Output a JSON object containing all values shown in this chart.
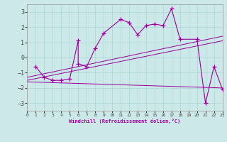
{
  "xlabel": "Windchill (Refroidissement éolien,°C)",
  "bg_color": "#cce8e8",
  "line_color": "#990099",
  "grid_color": "#aad4d4",
  "xlim": [
    0,
    23
  ],
  "ylim": [
    -3.5,
    3.5
  ],
  "xticks": [
    0,
    1,
    2,
    3,
    4,
    5,
    6,
    7,
    8,
    9,
    10,
    11,
    12,
    13,
    14,
    15,
    16,
    17,
    18,
    19,
    20,
    21,
    22,
    23
  ],
  "yticks": [
    -3,
    -2,
    -1,
    0,
    1,
    2,
    3
  ],
  "series1_x": [
    1,
    2,
    3,
    4,
    5,
    6,
    6,
    7,
    8,
    9,
    11,
    12,
    13,
    14,
    15,
    16,
    17,
    18,
    20,
    21,
    22,
    23
  ],
  "series1_y": [
    -0.6,
    -1.3,
    -1.5,
    -1.5,
    -1.4,
    1.1,
    -0.4,
    -0.6,
    0.6,
    1.6,
    2.5,
    2.3,
    1.5,
    2.1,
    2.2,
    2.1,
    3.2,
    1.2,
    1.2,
    -3.0,
    -0.6,
    -2.1
  ],
  "series2_x": [
    0,
    23
  ],
  "series2_y": [
    -1.3,
    1.4
  ],
  "series3_x": [
    0,
    23
  ],
  "series3_y": [
    -1.5,
    1.1
  ],
  "series4_x": [
    0,
    23
  ],
  "series4_y": [
    -1.6,
    -2.0
  ]
}
